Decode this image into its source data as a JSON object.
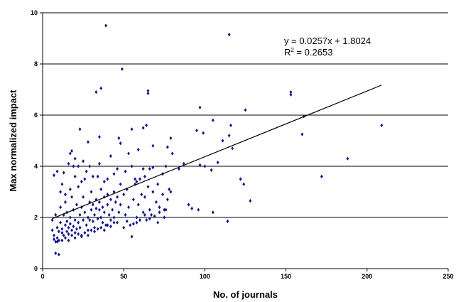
{
  "chart_data": {
    "type": "scatter",
    "title": "",
    "xlabel": "No. of journals",
    "ylabel": "Max normalized impact",
    "xlim": [
      0,
      250
    ],
    "ylim": [
      0,
      10
    ],
    "x_ticks": [
      "0",
      "50",
      "100",
      "150",
      "200",
      "250"
    ],
    "y_ticks": [
      "0",
      "2",
      "4",
      "6",
      "8",
      "10"
    ],
    "grid": "horizontal",
    "legend": "none",
    "marker_color": "#14148c",
    "trendline": {
      "type": "linear",
      "slope": 0.0257,
      "intercept": 1.8024,
      "x_range": [
        6,
        209
      ],
      "equation": "y = 0.0257x + 1.8024",
      "r2_prefix": "R",
      "r2_exponent": "2",
      "r2_value": " = 0.2653"
    },
    "points": [
      [
        39,
        9.5
      ],
      [
        115,
        9.15
      ],
      [
        49,
        7.8
      ],
      [
        33,
        6.9
      ],
      [
        36,
        7.05
      ],
      [
        65,
        6.95
      ],
      [
        65,
        6.85
      ],
      [
        153,
        6.9
      ],
      [
        153,
        6.8
      ],
      [
        97,
        6.3
      ],
      [
        125,
        6.2
      ],
      [
        161,
        5.95
      ],
      [
        105,
        5.8
      ],
      [
        116,
        5.6
      ],
      [
        160,
        5.25
      ],
      [
        209,
        5.6
      ],
      [
        23,
        5.45
      ],
      [
        55,
        5.45
      ],
      [
        64,
        5.6
      ],
      [
        62,
        5.5
      ],
      [
        47,
        5.1
      ],
      [
        35,
        5.15
      ],
      [
        28,
        4.95
      ],
      [
        79,
        5.1
      ],
      [
        95,
        5.4
      ],
      [
        99,
        5.3
      ],
      [
        115,
        5.2
      ],
      [
        111,
        5.0
      ],
      [
        18,
        4.6
      ],
      [
        17,
        4.5
      ],
      [
        20,
        4.3
      ],
      [
        16,
        4.1
      ],
      [
        25,
        4.2
      ],
      [
        42,
        4.4
      ],
      [
        48,
        4.9
      ],
      [
        59,
        4.65
      ],
      [
        68,
        4.8
      ],
      [
        77,
        4.75
      ],
      [
        80,
        4.5
      ],
      [
        108,
        4.15
      ],
      [
        117,
        4.7
      ],
      [
        122,
        3.5
      ],
      [
        7,
        3.65
      ],
      [
        9,
        3.8
      ],
      [
        13,
        3.75
      ],
      [
        12,
        3.3
      ],
      [
        19,
        4.0
      ],
      [
        22,
        4.0
      ],
      [
        27,
        3.8
      ],
      [
        31,
        3.6
      ],
      [
        34,
        3.6
      ],
      [
        38,
        3.4
      ],
      [
        44,
        3.7
      ],
      [
        51,
        3.8
      ],
      [
        55,
        4.0
      ],
      [
        57,
        3.5
      ],
      [
        62,
        3.9
      ],
      [
        66,
        3.9
      ],
      [
        68,
        3.95
      ],
      [
        76,
        4.0
      ],
      [
        84,
        3.9
      ],
      [
        87,
        4.1
      ],
      [
        97,
        4.05
      ],
      [
        100,
        4.0
      ],
      [
        104,
        3.85
      ],
      [
        124,
        3.3
      ],
      [
        128,
        2.65
      ],
      [
        172,
        3.6
      ],
      [
        188,
        4.3
      ],
      [
        6,
        1.9
      ],
      [
        6,
        1.5
      ],
      [
        7,
        1.3
      ],
      [
        7,
        1.15
      ],
      [
        8,
        1.05
      ],
      [
        8,
        2.1
      ],
      [
        9,
        1.6
      ],
      [
        9,
        1.2
      ],
      [
        10,
        1.45
      ],
      [
        10,
        1.1
      ],
      [
        11,
        1.8
      ],
      [
        11,
        2.4
      ],
      [
        12,
        1.4
      ],
      [
        12,
        1.55
      ],
      [
        13,
        1.3
      ],
      [
        13,
        2.1
      ],
      [
        14,
        1.7
      ],
      [
        14,
        2.6
      ],
      [
        15,
        1.45
      ],
      [
        15,
        1.85
      ],
      [
        15,
        2.2
      ],
      [
        16,
        1.6
      ],
      [
        16,
        1.35
      ],
      [
        17,
        1.75
      ],
      [
        17,
        2.0
      ],
      [
        18,
        1.5
      ],
      [
        18,
        2.8
      ],
      [
        19,
        1.65
      ],
      [
        19,
        2.3
      ],
      [
        20,
        1.9
      ],
      [
        20,
        1.4
      ],
      [
        21,
        1.55
      ],
      [
        21,
        2.5
      ],
      [
        22,
        1.8
      ],
      [
        22,
        3.2
      ],
      [
        23,
        2.1
      ],
      [
        23,
        1.6
      ],
      [
        24,
        2.4
      ],
      [
        24,
        1.3
      ],
      [
        25,
        2.8
      ],
      [
        25,
        1.9
      ],
      [
        26,
        3.5
      ],
      [
        26,
        2.2
      ],
      [
        27,
        1.7
      ],
      [
        28,
        2.0
      ],
      [
        28,
        1.5
      ],
      [
        29,
        2.6
      ],
      [
        29,
        1.9
      ],
      [
        30,
        3.0
      ],
      [
        30,
        2.3
      ],
      [
        31,
        1.85
      ],
      [
        31,
        2.5
      ],
      [
        32,
        2.1
      ],
      [
        32,
        1.6
      ],
      [
        33,
        2.7
      ],
      [
        33,
        2.35
      ],
      [
        34,
        1.95
      ],
      [
        35,
        2.3
      ],
      [
        35,
        2.6
      ],
      [
        36,
        2.0
      ],
      [
        36,
        3.1
      ],
      [
        37,
        2.4
      ],
      [
        37,
        1.8
      ],
      [
        38,
        2.2
      ],
      [
        38,
        2.8
      ],
      [
        39,
        1.7
      ],
      [
        40,
        2.5
      ],
      [
        40,
        2.9
      ],
      [
        41,
        2.1
      ],
      [
        42,
        2.7
      ],
      [
        42,
        1.9
      ],
      [
        43,
        2.3
      ],
      [
        44,
        3.0
      ],
      [
        44,
        2.0
      ],
      [
        45,
        2.6
      ],
      [
        46,
        1.8
      ],
      [
        46,
        2.8
      ],
      [
        47,
        2.2
      ],
      [
        48,
        3.3
      ],
      [
        48,
        2.5
      ],
      [
        50,
        2.9
      ],
      [
        51,
        2.1
      ],
      [
        52,
        3.1
      ],
      [
        53,
        2.4
      ],
      [
        54,
        1.7
      ],
      [
        55,
        1.25
      ],
      [
        56,
        2.7
      ],
      [
        57,
        3.3
      ],
      [
        58,
        2.0
      ],
      [
        59,
        2.5
      ],
      [
        60,
        3.5
      ],
      [
        61,
        2.9
      ],
      [
        62,
        2.2
      ],
      [
        63,
        2.8
      ],
      [
        64,
        1.9
      ],
      [
        65,
        3.2
      ],
      [
        66,
        2.3
      ],
      [
        67,
        2.1
      ],
      [
        68,
        3.0
      ],
      [
        70,
        2.6
      ],
      [
        71,
        1.8
      ],
      [
        72,
        2.4
      ],
      [
        74,
        2.9
      ],
      [
        75,
        2.0
      ],
      [
        76,
        2.3
      ],
      [
        77,
        2.7
      ],
      [
        78,
        3.1
      ],
      [
        90,
        2.5
      ],
      [
        92,
        2.35
      ],
      [
        96,
        2.3
      ],
      [
        105,
        2.2
      ],
      [
        114,
        1.85
      ],
      [
        8,
        0.6
      ],
      [
        10,
        0.55
      ],
      [
        9,
        1.05
      ],
      [
        12,
        1.1
      ],
      [
        14,
        1.2
      ],
      [
        16,
        1.1
      ],
      [
        18,
        1.3
      ],
      [
        20,
        1.2
      ],
      [
        22,
        1.35
      ],
      [
        24,
        1.25
      ],
      [
        26,
        1.4
      ],
      [
        28,
        1.3
      ],
      [
        30,
        1.5
      ],
      [
        32,
        1.45
      ],
      [
        34,
        1.55
      ],
      [
        36,
        1.6
      ],
      [
        38,
        1.5
      ],
      [
        40,
        1.7
      ],
      [
        42,
        1.65
      ],
      [
        44,
        1.8
      ],
      [
        50,
        1.6
      ],
      [
        52,
        1.85
      ],
      [
        56,
        1.75
      ],
      [
        58,
        1.8
      ],
      [
        60,
        1.9
      ],
      [
        63,
        2.1
      ],
      [
        66,
        1.95
      ],
      [
        69,
        2.05
      ],
      [
        72,
        2.2
      ],
      [
        75,
        2.3
      ],
      [
        20,
        3.6
      ],
      [
        14,
        2.9
      ],
      [
        11,
        3.0
      ],
      [
        24,
        3.4
      ],
      [
        17,
        3.1
      ],
      [
        29,
        4.0
      ],
      [
        35,
        4.1
      ],
      [
        40,
        3.5
      ],
      [
        46,
        3.9
      ],
      [
        53,
        4.5
      ],
      [
        58,
        3.4
      ],
      [
        63,
        3.6
      ],
      [
        71,
        3.3
      ],
      [
        74,
        3.7
      ],
      [
        79,
        3.0
      ]
    ]
  }
}
